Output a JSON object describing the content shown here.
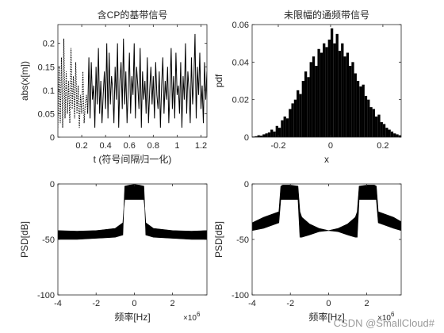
{
  "chart_data": [
    {
      "type": "line",
      "title": "含CP的基带信号",
      "xlabel": "t (符号间隔归一化)",
      "ylabel": "abs(x[m])",
      "xlim": [
        0,
        1.25
      ],
      "ylim": [
        0,
        0.24
      ],
      "xticks": [
        0.2,
        0.4,
        0.6,
        0.8,
        1,
        1.2
      ],
      "yticks": [
        0,
        0.05,
        0.1,
        0.15,
        0.2
      ],
      "xtick_labels": [
        "0.2",
        "0.4",
        "0.6",
        "0.8",
        "1",
        "1.2"
      ],
      "ytick_labels": [
        "0",
        "0.05",
        "0.1",
        "0.15",
        "0.2"
      ],
      "grid": false,
      "series": [
        {
          "style": "dotted",
          "x": [
            0.0,
            0.01,
            0.02,
            0.03,
            0.04,
            0.05,
            0.06,
            0.07,
            0.08,
            0.09,
            0.1,
            0.11,
            0.12,
            0.13,
            0.14,
            0.15,
            0.16,
            0.17,
            0.18,
            0.19,
            0.2,
            0.21,
            0.22,
            0.23,
            0.24,
            0.25
          ],
          "y": [
            0.02,
            0.15,
            0.03,
            0.17,
            0.02,
            0.21,
            0.04,
            0.14,
            0.05,
            0.12,
            0.03,
            0.19,
            0.06,
            0.13,
            0.04,
            0.16,
            0.05,
            0.11,
            0.02,
            0.09,
            0.05,
            0.14,
            0.03,
            0.07,
            0.09,
            0.05
          ]
        },
        {
          "style": "solid",
          "x": [
            0.25,
            0.26,
            0.27,
            0.28,
            0.29,
            0.3,
            0.31,
            0.32,
            0.33,
            0.34,
            0.35,
            0.36,
            0.37,
            0.38,
            0.39,
            0.4,
            0.41,
            0.42,
            0.43,
            0.44,
            0.45,
            0.46,
            0.47,
            0.48,
            0.49,
            0.5,
            0.51,
            0.52,
            0.53,
            0.54,
            0.55,
            0.56,
            0.57,
            0.58,
            0.59,
            0.6,
            0.61,
            0.62,
            0.63,
            0.64,
            0.65,
            0.66,
            0.67,
            0.68,
            0.69,
            0.7,
            0.71,
            0.72,
            0.73,
            0.74,
            0.75,
            0.76,
            0.77,
            0.78,
            0.79,
            0.8,
            0.81,
            0.82,
            0.83,
            0.84,
            0.85,
            0.86,
            0.87,
            0.88,
            0.89,
            0.9,
            0.91,
            0.92,
            0.93,
            0.94,
            0.95,
            0.96,
            0.97,
            0.98,
            0.99,
            1.0,
            1.01,
            1.02,
            1.03,
            1.04,
            1.05,
            1.06,
            1.07,
            1.08,
            1.09,
            1.1,
            1.11,
            1.12,
            1.13,
            1.14,
            1.15,
            1.16,
            1.17,
            1.18,
            1.19,
            1.2,
            1.21,
            1.22,
            1.23,
            1.24,
            1.25
          ],
          "y": [
            0.05,
            0.17,
            0.04,
            0.16,
            0.08,
            0.11,
            0.02,
            0.15,
            0.07,
            0.19,
            0.05,
            0.12,
            0.03,
            0.09,
            0.14,
            0.06,
            0.2,
            0.04,
            0.18,
            0.07,
            0.13,
            0.1,
            0.03,
            0.15,
            0.08,
            0.2,
            0.02,
            0.12,
            0.16,
            0.06,
            0.21,
            0.07,
            0.14,
            0.03,
            0.1,
            0.18,
            0.05,
            0.13,
            0.09,
            0.2,
            0.04,
            0.15,
            0.11,
            0.06,
            0.19,
            0.02,
            0.14,
            0.08,
            0.12,
            0.05,
            0.17,
            0.03,
            0.1,
            0.15,
            0.07,
            0.13,
            0.04,
            0.16,
            0.09,
            0.06,
            0.14,
            0.02,
            0.11,
            0.17,
            0.05,
            0.12,
            0.08,
            0.15,
            0.03,
            0.1,
            0.19,
            0.06,
            0.13,
            0.04,
            0.18,
            0.09,
            0.11,
            0.05,
            0.16,
            0.02,
            0.13,
            0.08,
            0.2,
            0.05,
            0.14,
            0.1,
            0.03,
            0.17,
            0.07,
            0.12,
            0.22,
            0.04,
            0.15,
            0.09,
            0.18,
            0.06,
            0.11,
            0.03,
            0.16,
            0.08,
            0.14
          ]
        }
      ]
    },
    {
      "type": "bar",
      "title": "未限幅的通频带信号",
      "xlabel": "x",
      "ylabel": "pdf",
      "xlim": [
        -0.3,
        0.27
      ],
      "ylim": [
        0,
        0.06
      ],
      "xticks": [
        -0.2,
        0,
        0.2
      ],
      "yticks": [
        0,
        0.02,
        0.04,
        0.06
      ],
      "xtick_labels": [
        "-0.2",
        "0",
        "0.2"
      ],
      "ytick_labels": [
        "0",
        "0.02",
        "0.04",
        "0.06"
      ],
      "grid": false,
      "x": [
        -0.295,
        -0.285,
        -0.275,
        -0.265,
        -0.255,
        -0.245,
        -0.235,
        -0.225,
        -0.215,
        -0.205,
        -0.195,
        -0.185,
        -0.175,
        -0.165,
        -0.155,
        -0.145,
        -0.135,
        -0.125,
        -0.115,
        -0.105,
        -0.095,
        -0.085,
        -0.075,
        -0.065,
        -0.055,
        -0.045,
        -0.035,
        -0.025,
        -0.015,
        -0.005,
        0.005,
        0.015,
        0.025,
        0.035,
        0.045,
        0.055,
        0.065,
        0.075,
        0.085,
        0.095,
        0.105,
        0.115,
        0.125,
        0.135,
        0.145,
        0.155,
        0.165,
        0.175,
        0.185,
        0.195,
        0.205,
        0.215,
        0.225,
        0.235,
        0.245,
        0.255,
        0.265
      ],
      "values": [
        0.0003,
        0.0005,
        0.001,
        0.0008,
        0.0015,
        0.002,
        0.0025,
        0.004,
        0.003,
        0.006,
        0.005,
        0.009,
        0.011,
        0.01,
        0.015,
        0.018,
        0.02,
        0.025,
        0.023,
        0.03,
        0.035,
        0.032,
        0.04,
        0.043,
        0.038,
        0.047,
        0.045,
        0.05,
        0.048,
        0.052,
        0.058,
        0.05,
        0.055,
        0.046,
        0.05,
        0.043,
        0.045,
        0.038,
        0.04,
        0.034,
        0.03,
        0.027,
        0.028,
        0.022,
        0.02,
        0.016,
        0.015,
        0.011,
        0.012,
        0.008,
        0.007,
        0.005,
        0.004,
        0.003,
        0.002,
        0.0015,
        0.001
      ]
    },
    {
      "type": "area",
      "title": "",
      "xlabel": "频率[Hz]",
      "ylabel": "PSD[dB]",
      "x_exponent": "10^6",
      "xlim": [
        -4,
        3.8
      ],
      "ylim": [
        -100,
        0
      ],
      "xticks": [
        -4,
        -2,
        0,
        2
      ],
      "yticks": [
        -100,
        -50,
        0
      ],
      "xtick_labels": [
        "-4",
        "-2",
        "0",
        "2"
      ],
      "ytick_labels": [
        "-100",
        "-50",
        "0"
      ],
      "grid": false,
      "x": [
        -4.0,
        -3.0,
        -2.0,
        -1.0,
        -0.6,
        -0.55,
        -0.5,
        -0.25,
        0.0,
        0.25,
        0.5,
        0.55,
        0.6,
        1.0,
        2.0,
        3.0,
        3.8
      ],
      "upper": [
        -42,
        -42.5,
        -42,
        -40,
        -35,
        -22,
        -2,
        -1,
        -0.5,
        -1,
        -2,
        -22,
        -35,
        -40,
        -42,
        -42.5,
        -42
      ],
      "lower": [
        -50,
        -50,
        -49,
        -48,
        -46,
        -22,
        -14,
        -14,
        -14,
        -14,
        -14,
        -22,
        -46,
        -48,
        -49,
        -50,
        -50
      ]
    },
    {
      "type": "area",
      "title": "",
      "xlabel": "频率[Hz]",
      "ylabel": "PSD[dB]",
      "x_exponent": "10^6",
      "xlim": [
        -4,
        3.8
      ],
      "ylim": [
        -100,
        0
      ],
      "xticks": [
        -4,
        -2,
        0,
        2
      ],
      "yticks": [
        -100,
        -50,
        0
      ],
      "xtick_labels": [
        "-4",
        "-2",
        "0",
        "2"
      ],
      "ytick_labels": [
        "-100",
        "-50",
        "0"
      ],
      "grid": false,
      "x": [
        -4.0,
        -3.4,
        -2.6,
        -2.5,
        -2.4,
        -2.0,
        -1.6,
        -1.5,
        -1.4,
        -1.0,
        -0.5,
        0.0,
        0.5,
        1.0,
        1.4,
        1.5,
        1.6,
        2.0,
        2.4,
        2.5,
        2.6,
        3.4,
        3.8
      ],
      "upper": [
        -35,
        -30,
        -25,
        -2,
        -1,
        -1,
        -2,
        -25,
        -30,
        -36,
        -40,
        -42,
        -40,
        -36,
        -30,
        -25,
        -2,
        -1,
        -1,
        -2,
        -25,
        -30,
        -34
      ],
      "lower": [
        -42,
        -40,
        -35,
        -14,
        -14,
        -14,
        -14,
        -48,
        -48,
        -46,
        -43,
        -42,
        -43,
        -46,
        -48,
        -48,
        -14,
        -14,
        -14,
        -14,
        -35,
        -40,
        -42
      ]
    }
  ],
  "watermark": "CSDN @SmallCloud#",
  "colors": {
    "ink": "#000000",
    "axis": "#262626",
    "watermark": "#9a9a9a"
  }
}
